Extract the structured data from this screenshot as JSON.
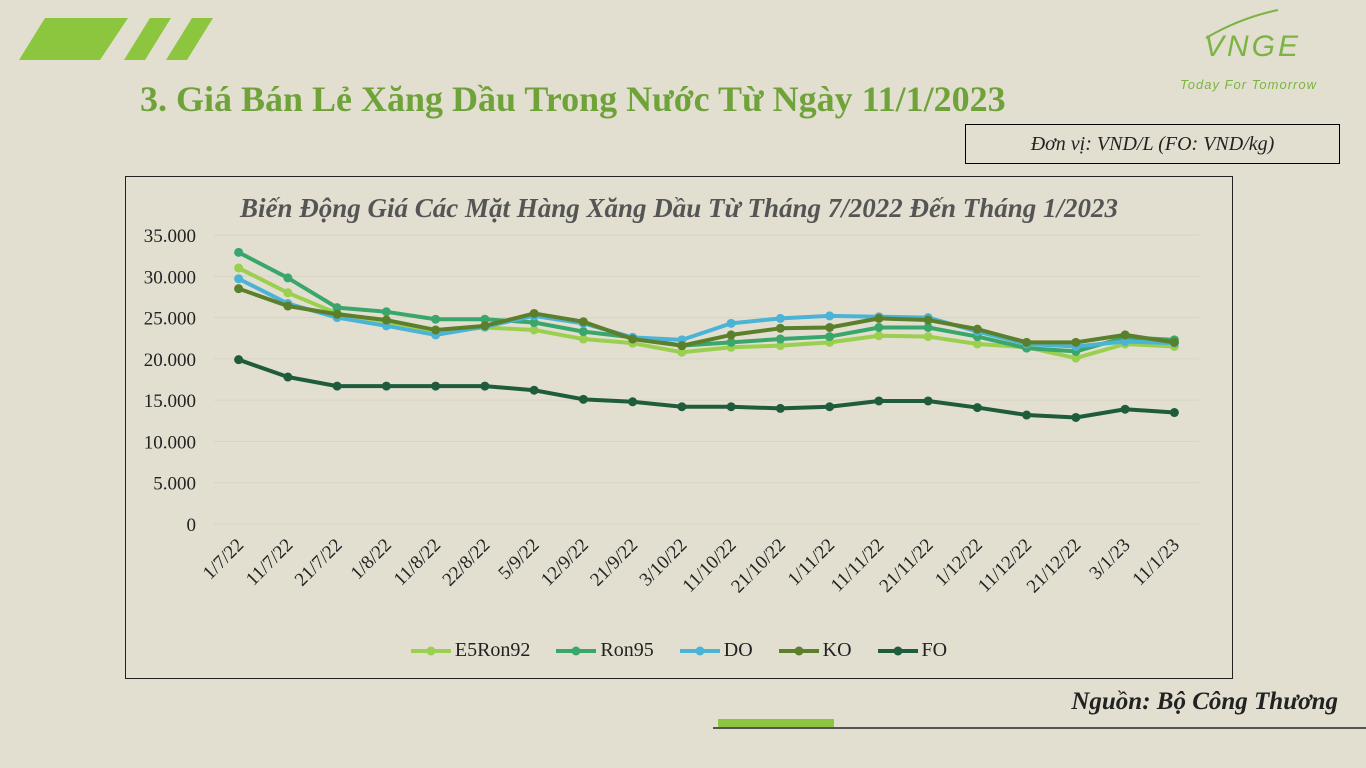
{
  "slide": {
    "title": "3. Giá Bán Lẻ Xăng Dầu Trong Nước Từ Ngày 11/1/2023",
    "unit": "Đơn vị: VND/L (FO: VND/kg)",
    "source": "Nguồn: Bộ Công Thương",
    "logo_text": "VNGE",
    "tagline": "Today For Tomorrow"
  },
  "chart_data": {
    "type": "line",
    "title": "Biến Động Giá Các Mặt Hàng Xăng Dầu Từ Tháng 7/2022 Đến Tháng 1/2023",
    "xlabel": "",
    "ylabel": "",
    "ylim": [
      0,
      35000
    ],
    "yticks": [
      0,
      5000,
      10000,
      15000,
      20000,
      25000,
      30000,
      35000
    ],
    "ytick_labels": [
      "0",
      "5.000",
      "10.000",
      "15.000",
      "20.000",
      "25.000",
      "30.000",
      "35.000"
    ],
    "grid": true,
    "legend_position": "bottom",
    "categories": [
      "1/7/22",
      "11/7/22",
      "21/7/22",
      "1/8/22",
      "11/8/22",
      "22/8/22",
      "5/9/22",
      "12/9/22",
      "21/9/22",
      "3/10/22",
      "11/10/22",
      "21/10/22",
      "1/11/22",
      "11/11/22",
      "21/11/22",
      "1/12/22",
      "11/12/22",
      "21/12/22",
      "3/1/23",
      "11/1/23"
    ],
    "series": [
      {
        "name": "E5Ron92",
        "color": "#9bcf4f",
        "values": [
          31000,
          28000,
          25500,
          24500,
          23300,
          23800,
          23500,
          22400,
          21900,
          20800,
          21400,
          21600,
          22000,
          22800,
          22700,
          21800,
          21400,
          20100,
          21800,
          21500
        ]
      },
      {
        "name": "Ron95",
        "color": "#3aa66b",
        "values": [
          32900,
          29800,
          26200,
          25700,
          24800,
          24800,
          24400,
          23300,
          22600,
          21600,
          22000,
          22400,
          22700,
          23800,
          23800,
          22700,
          21300,
          20900,
          22600,
          22300
        ]
      },
      {
        "name": "DO",
        "color": "#4bb3d6",
        "values": [
          29700,
          26700,
          25000,
          24000,
          22900,
          23900,
          25200,
          24300,
          22600,
          22300,
          24300,
          24900,
          25200,
          25100,
          25000,
          23300,
          21800,
          21500,
          22100,
          21900
        ]
      },
      {
        "name": "KO",
        "color": "#5b7f2a",
        "values": [
          28500,
          26400,
          25400,
          24700,
          23500,
          24000,
          25500,
          24500,
          22400,
          21600,
          22900,
          23700,
          23800,
          24900,
          24700,
          23600,
          22000,
          22000,
          22900,
          22000
        ]
      },
      {
        "name": "FO",
        "color": "#1f5c3c",
        "values": [
          19900,
          17800,
          16700,
          16700,
          16700,
          16700,
          16200,
          15100,
          14800,
          14200,
          14200,
          14000,
          14200,
          14900,
          14900,
          14100,
          13200,
          12900,
          13900,
          13500
        ]
      }
    ]
  }
}
